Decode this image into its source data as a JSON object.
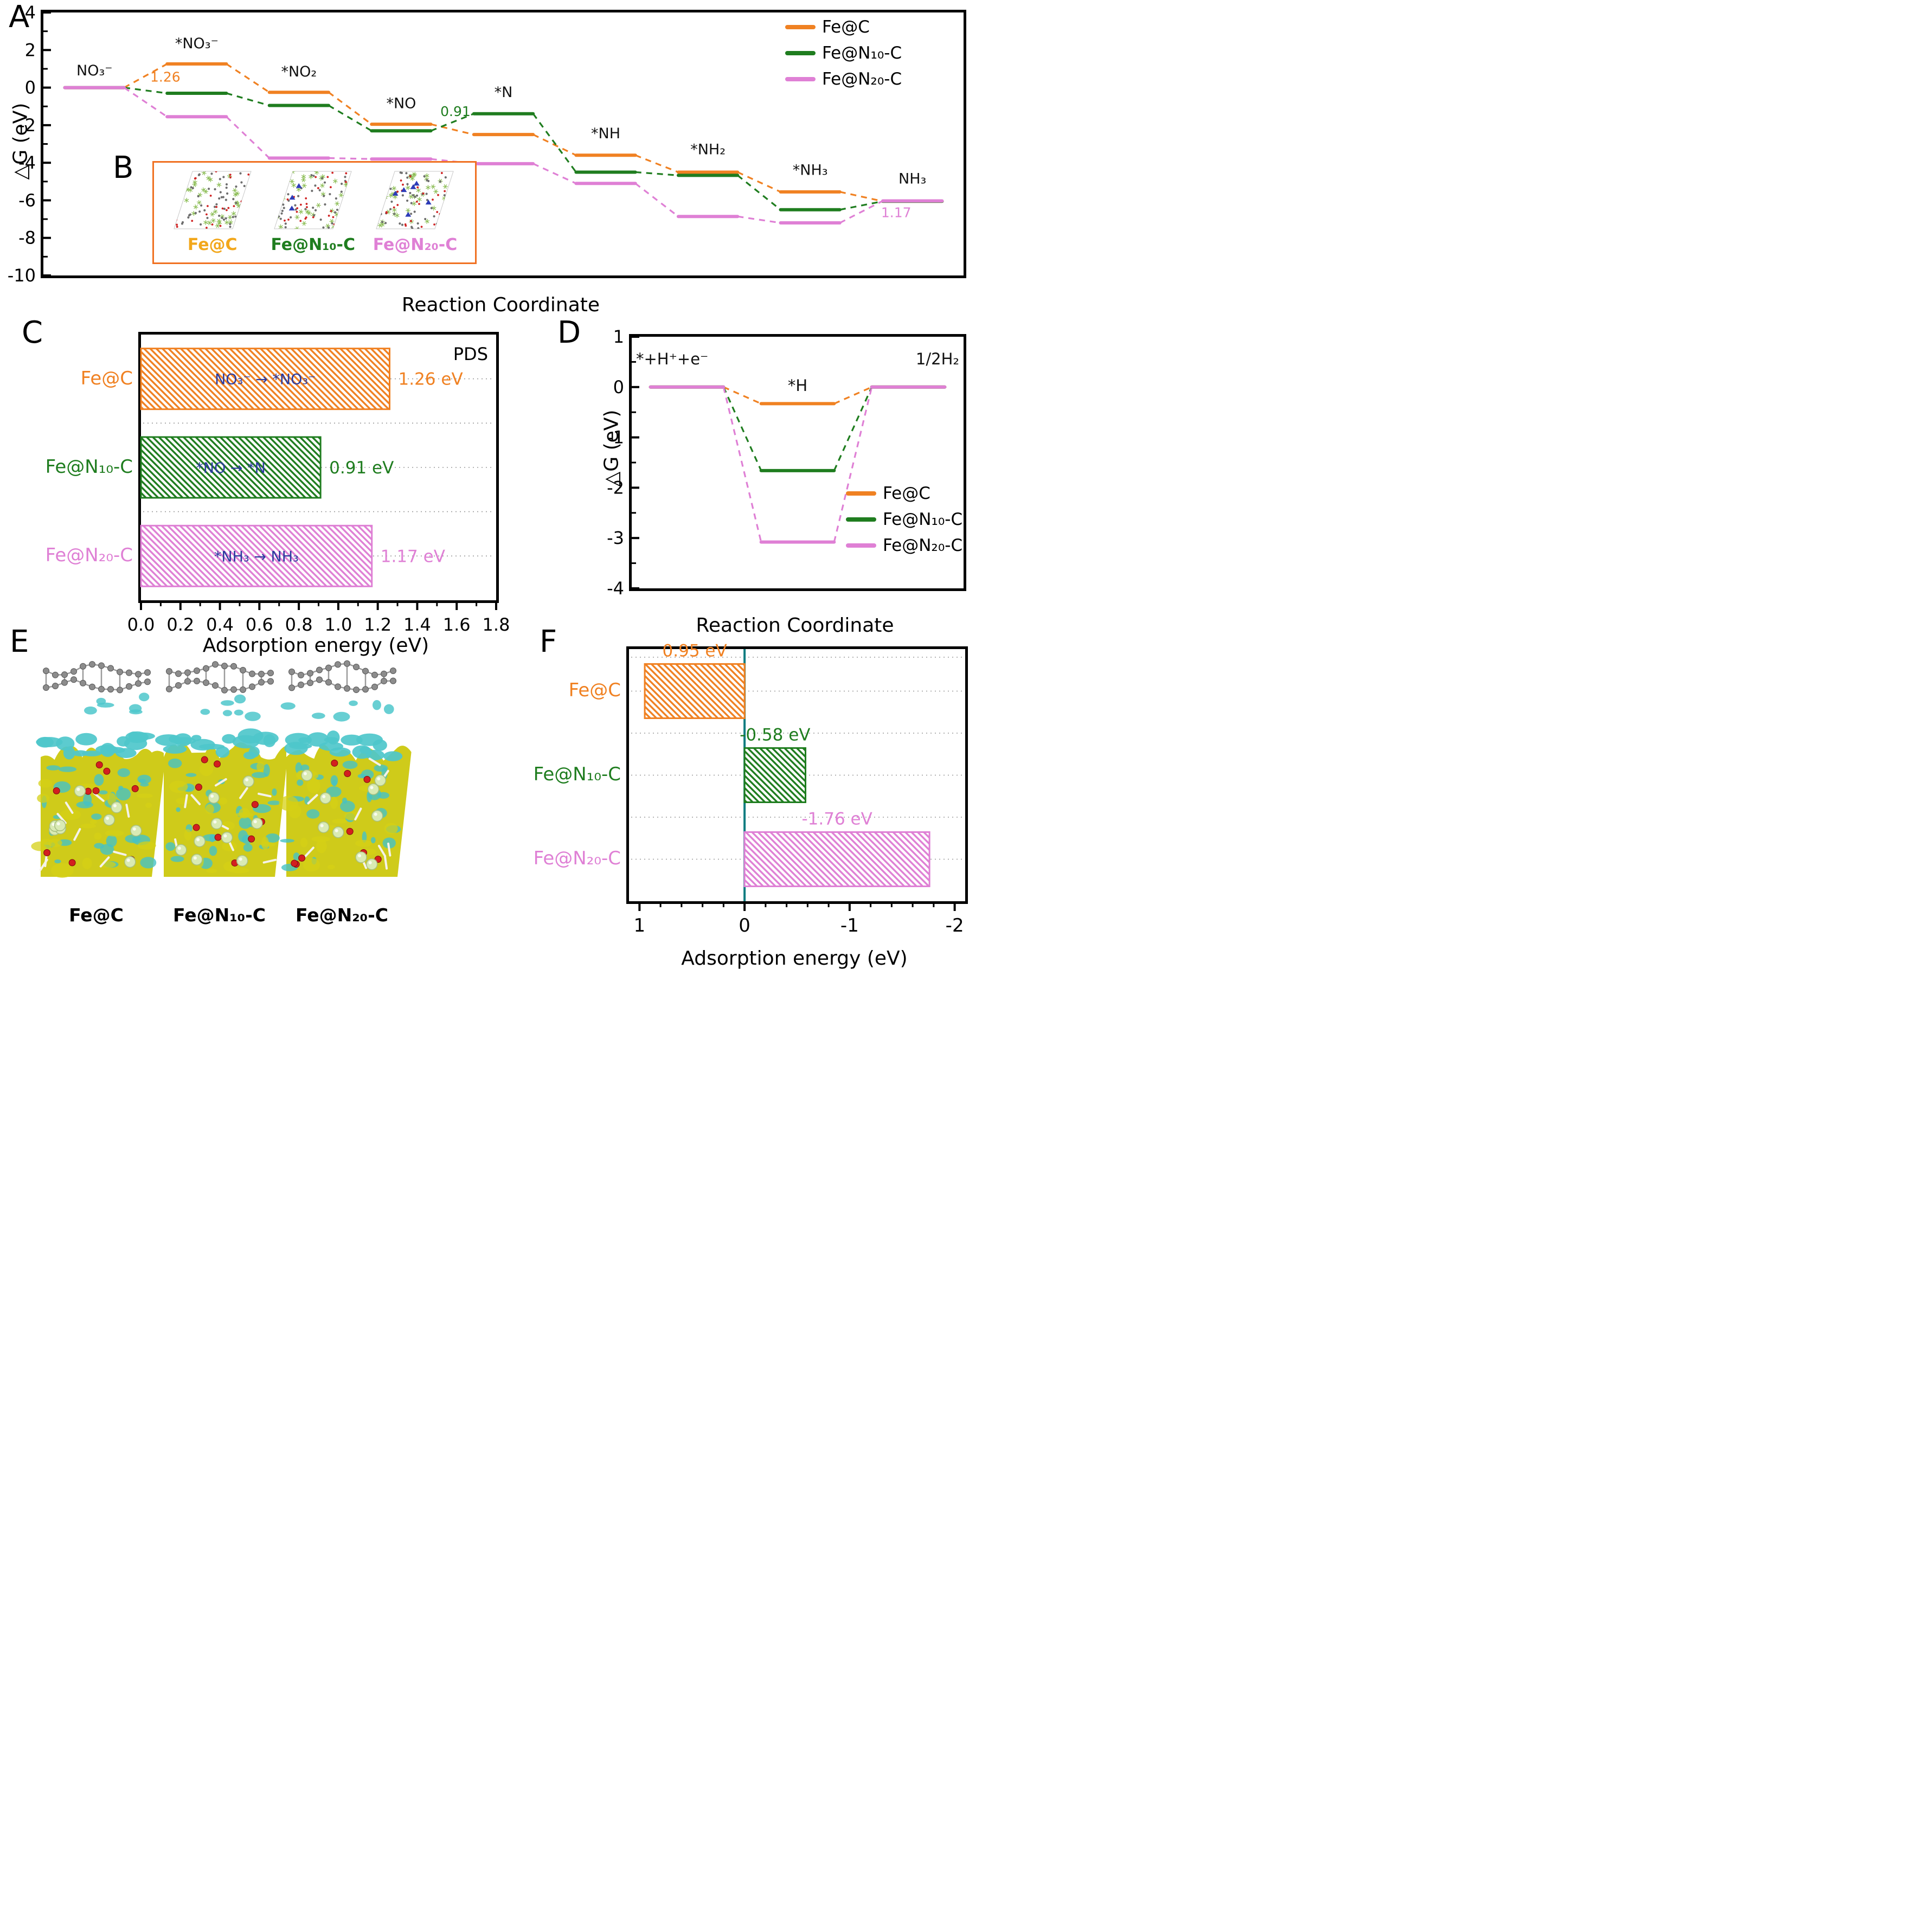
{
  "figure": {
    "colors": {
      "orange": "#F08122",
      "green": "#1F7D1F",
      "pink": "#DF80D5",
      "gold": "#F2A71B",
      "navy": "#2B3A9E",
      "teal": "#0E7C80",
      "inset_box_orange": "#F07122"
    },
    "panel_a": {
      "letter": "A",
      "ylabel": "△G (eV)",
      "xlabel": "Reaction Coordinate",
      "legend": [
        {
          "name": "Fe@C",
          "color": "#F08122"
        },
        {
          "name": "Fe@N₁₀-C",
          "color": "#1F7D1F"
        },
        {
          "name": "Fe@N₂₀-C",
          "color": "#DF80D5"
        }
      ],
      "chart_data": {
        "type": "line",
        "variant": "stepped-energy-diagram",
        "ylim": [
          4,
          -10
        ],
        "yticks": [
          4,
          2,
          0,
          -2,
          -4,
          -6,
          -8,
          -10
        ],
        "yminor": [
          3,
          1,
          -1,
          -3,
          -5,
          -7,
          -9
        ],
        "categories": [
          "NO₃⁻",
          "*NO₃⁻",
          "*NO₂",
          "*NO",
          "*N",
          "*NH",
          "*NH₂",
          "*NH₃",
          "NH₃"
        ],
        "state_label_y": [
          0.65,
          2.1,
          0.6,
          -1.1,
          -0.5,
          -2.7,
          -3.55,
          -4.65,
          -5.1
        ],
        "series": [
          {
            "name": "Fe@C",
            "color": "#F08122",
            "values": [
              0,
              1.26,
              -0.25,
              -1.95,
              -2.5,
              -3.6,
              -4.5,
              -5.55,
              -6.05
            ]
          },
          {
            "name": "Fe@N₁₀-C",
            "color": "#1F7D1F",
            "values": [
              0,
              -0.3,
              -0.95,
              -2.3,
              -1.39,
              -4.5,
              -4.67,
              -6.5,
              -6.05
            ]
          },
          {
            "name": "Fe@N₂₀-C",
            "color": "#DF80D5",
            "values": [
              0,
              -1.55,
              -3.75,
              -3.8,
              -4.05,
              -5.1,
              -6.86,
              -7.2,
              -6.03
            ]
          }
        ],
        "annotations": [
          {
            "text": "1.26",
            "color": "#F08122",
            "state": 1,
            "dx": -58,
            "y": 0.32
          },
          {
            "text": "0.91",
            "color": "#1F7D1F",
            "state": 3,
            "dx": 100,
            "y": -1.52
          },
          {
            "text": "1.17",
            "color": "#DF80D5",
            "state": 8,
            "dx": -30,
            "y": -6.9
          }
        ]
      }
    },
    "panel_b": {
      "letter": "B",
      "structures": [
        {
          "label": "Fe@C",
          "color": "#F2A71B",
          "n_blue": 0
        },
        {
          "label": "Fe@N₁₀-C",
          "color": "#1F7D1F",
          "n_blue": 3
        },
        {
          "label": "Fe@N₂₀-C",
          "color": "#DF80D5",
          "n_blue": 6
        }
      ]
    },
    "panel_c": {
      "letter": "C",
      "corner_tag": "PDS",
      "xlabel": "Adsorption energy (eV)",
      "chart_data": {
        "type": "bar",
        "orientation": "horizontal",
        "xlim": [
          0,
          1.8
        ],
        "xticks": [
          "0.0",
          "0.2",
          "0.4",
          "0.6",
          "0.8",
          "1.0",
          "1.2",
          "1.4",
          "1.6",
          "1.8"
        ],
        "xminor_step": 0.1,
        "categories": [
          "Fe@C",
          "Fe@N₁₀-C",
          "Fe@N₂₀-C"
        ],
        "category_colors": [
          "#F08122",
          "#1F7D1F",
          "#DF80D5"
        ],
        "values": [
          1.26,
          0.91,
          1.17
        ],
        "value_labels": [
          "1.26 eV",
          "0.91 eV",
          "1.17 eV"
        ],
        "bar_colors": [
          "#F08122",
          "#1F7D1F",
          "#DF80D5"
        ],
        "bar_annotations": [
          "NO₃⁻ → *NO₃⁻",
          "*NO → *N",
          "*NH₃ → NH₃"
        ],
        "annotation_color": "#2B3A9E"
      }
    },
    "panel_d": {
      "letter": "D",
      "ylabel": "△G (eV)",
      "xlabel": "Reaction Coordinate",
      "legend": [
        {
          "name": "Fe@C",
          "color": "#F08122"
        },
        {
          "name": "Fe@N₁₀-C",
          "color": "#1F7D1F"
        },
        {
          "name": "Fe@N₂₀-C",
          "color": "#DF80D5"
        }
      ],
      "chart_data": {
        "type": "line",
        "variant": "stepped-energy-diagram",
        "ylim": [
          1,
          -4
        ],
        "yticks": [
          1,
          0,
          -1,
          -2,
          -3,
          -4
        ],
        "yminor": [
          0.5,
          -0.5,
          -1.5,
          -2.5,
          -3.5
        ],
        "categories": [
          "*+H⁺+e⁻",
          "*H",
          "1/2H₂"
        ],
        "label_align": [
          "start",
          "middle",
          "end"
        ],
        "state_label_y": [
          0.45,
          -0.08,
          0.45
        ],
        "series": [
          {
            "name": "Fe@C",
            "color": "#F08122",
            "values": [
              0,
              -0.33,
              0
            ]
          },
          {
            "name": "Fe@N₁₀-C",
            "color": "#1F7D1F",
            "values": [
              0,
              -1.66,
              0
            ]
          },
          {
            "name": "Fe@N₂₀-C",
            "color": "#DF80D5",
            "values": [
              0,
              -3.08,
              0
            ]
          }
        ],
        "annotations": []
      }
    },
    "panel_e": {
      "letter": "E",
      "items": [
        {
          "label": "Fe@C"
        },
        {
          "label": "Fe@N₁₀-C"
        },
        {
          "label": "Fe@N₂₀-C"
        }
      ]
    },
    "panel_f": {
      "letter": "F",
      "xlabel": "Adsorption energy (eV)",
      "chart_data": {
        "type": "bar",
        "orientation": "horizontal",
        "xlim": [
          1.1,
          -2.1
        ],
        "xticks": [
          "1",
          "0",
          "-1",
          "-2"
        ],
        "xminor_step": 0.2,
        "zero_line_color": "#0E7C80",
        "categories": [
          "Fe@C",
          "Fe@N₁₀-C",
          "Fe@N₂₀-C"
        ],
        "category_colors": [
          "#F08122",
          "#1F7D1F",
          "#DF80D5"
        ],
        "values": [
          0.95,
          -0.58,
          -1.76
        ],
        "value_labels": [
          "0.95 eV",
          "-0.58 eV",
          "-1.76 eV"
        ],
        "bar_colors": [
          "#F08122",
          "#1F7D1F",
          "#DF80D5"
        ]
      }
    }
  }
}
